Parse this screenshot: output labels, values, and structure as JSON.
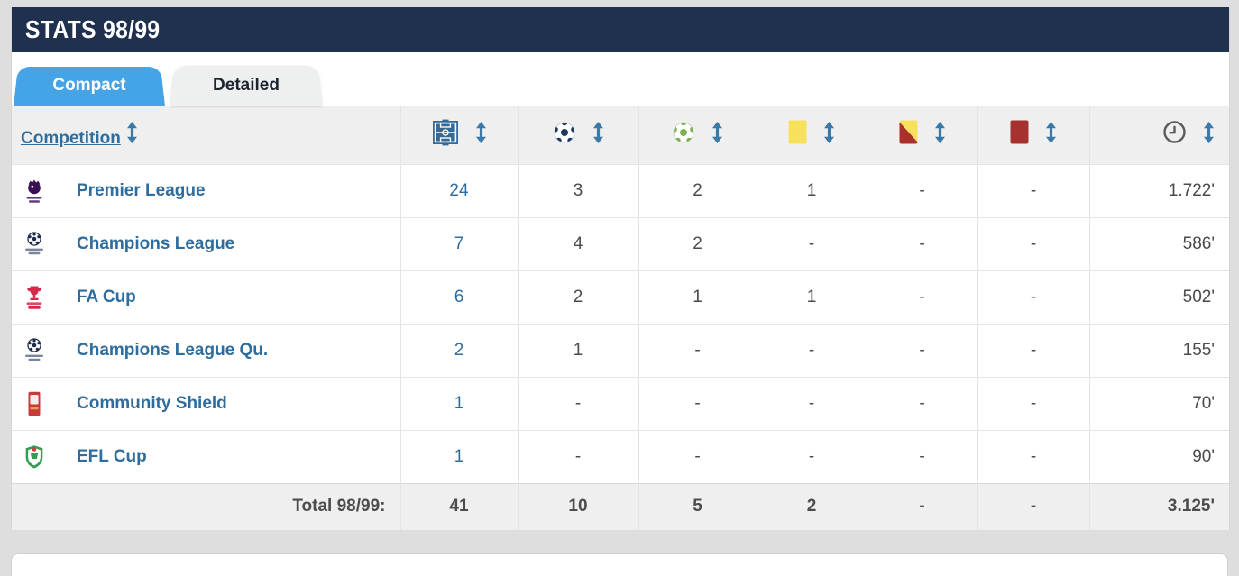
{
  "header": {
    "title": "STATS 98/99"
  },
  "tabs": [
    {
      "label": "Compact",
      "active": true
    },
    {
      "label": "Detailed",
      "active": false
    }
  ],
  "table": {
    "competition_header": "Competition",
    "columns": [
      {
        "key": "matches",
        "icon": "pitch-icon"
      },
      {
        "key": "goals",
        "icon": "goals-ball-icon"
      },
      {
        "key": "assists",
        "icon": "assists-ball-icon"
      },
      {
        "key": "yellow_cards",
        "icon": "yellow-card-icon"
      },
      {
        "key": "yellow_red_cards",
        "icon": "yellow-red-card-icon"
      },
      {
        "key": "red_cards",
        "icon": "red-card-icon"
      },
      {
        "key": "minutes",
        "icon": "clock-icon"
      }
    ],
    "rows": [
      {
        "competition": "Premier League",
        "logo": "premier-league",
        "values": [
          "24",
          "3",
          "2",
          "1",
          "-",
          "-"
        ],
        "minutes": "1.722'"
      },
      {
        "competition": "Champions League",
        "logo": "champions-league",
        "values": [
          "7",
          "4",
          "2",
          "-",
          "-",
          "-"
        ],
        "minutes": "586'"
      },
      {
        "competition": "FA Cup",
        "logo": "fa-cup",
        "values": [
          "6",
          "2",
          "1",
          "1",
          "-",
          "-"
        ],
        "minutes": "502'"
      },
      {
        "competition": "Champions League Qu.",
        "logo": "champions-league",
        "values": [
          "2",
          "1",
          "-",
          "-",
          "-",
          "-"
        ],
        "minutes": "155'"
      },
      {
        "competition": "Community Shield",
        "logo": "community-shield",
        "values": [
          "1",
          "-",
          "-",
          "-",
          "-",
          "-"
        ],
        "minutes": "70'"
      },
      {
        "competition": "EFL Cup",
        "logo": "efl-cup",
        "values": [
          "1",
          "-",
          "-",
          "-",
          "-",
          "-"
        ],
        "minutes": "90'"
      }
    ],
    "footer": {
      "label": "Total 98/99:",
      "values": [
        "41",
        "10",
        "5",
        "2",
        "-",
        "-"
      ],
      "minutes": "3.125'"
    }
  },
  "colors": {
    "titlebar_navy": "#20304f",
    "tab_active_blue": "#45a4e5",
    "link_blue": "#2e6d9e",
    "pitch_blue": "#336a99",
    "goals_ball_navy": "#1d3a5f",
    "assists_ball_green": "#7fb052",
    "yellow_card": "#f7e15c",
    "red_card": "#a5322f",
    "header_row_gray": "#efefef",
    "page_background": "#dedede"
  }
}
